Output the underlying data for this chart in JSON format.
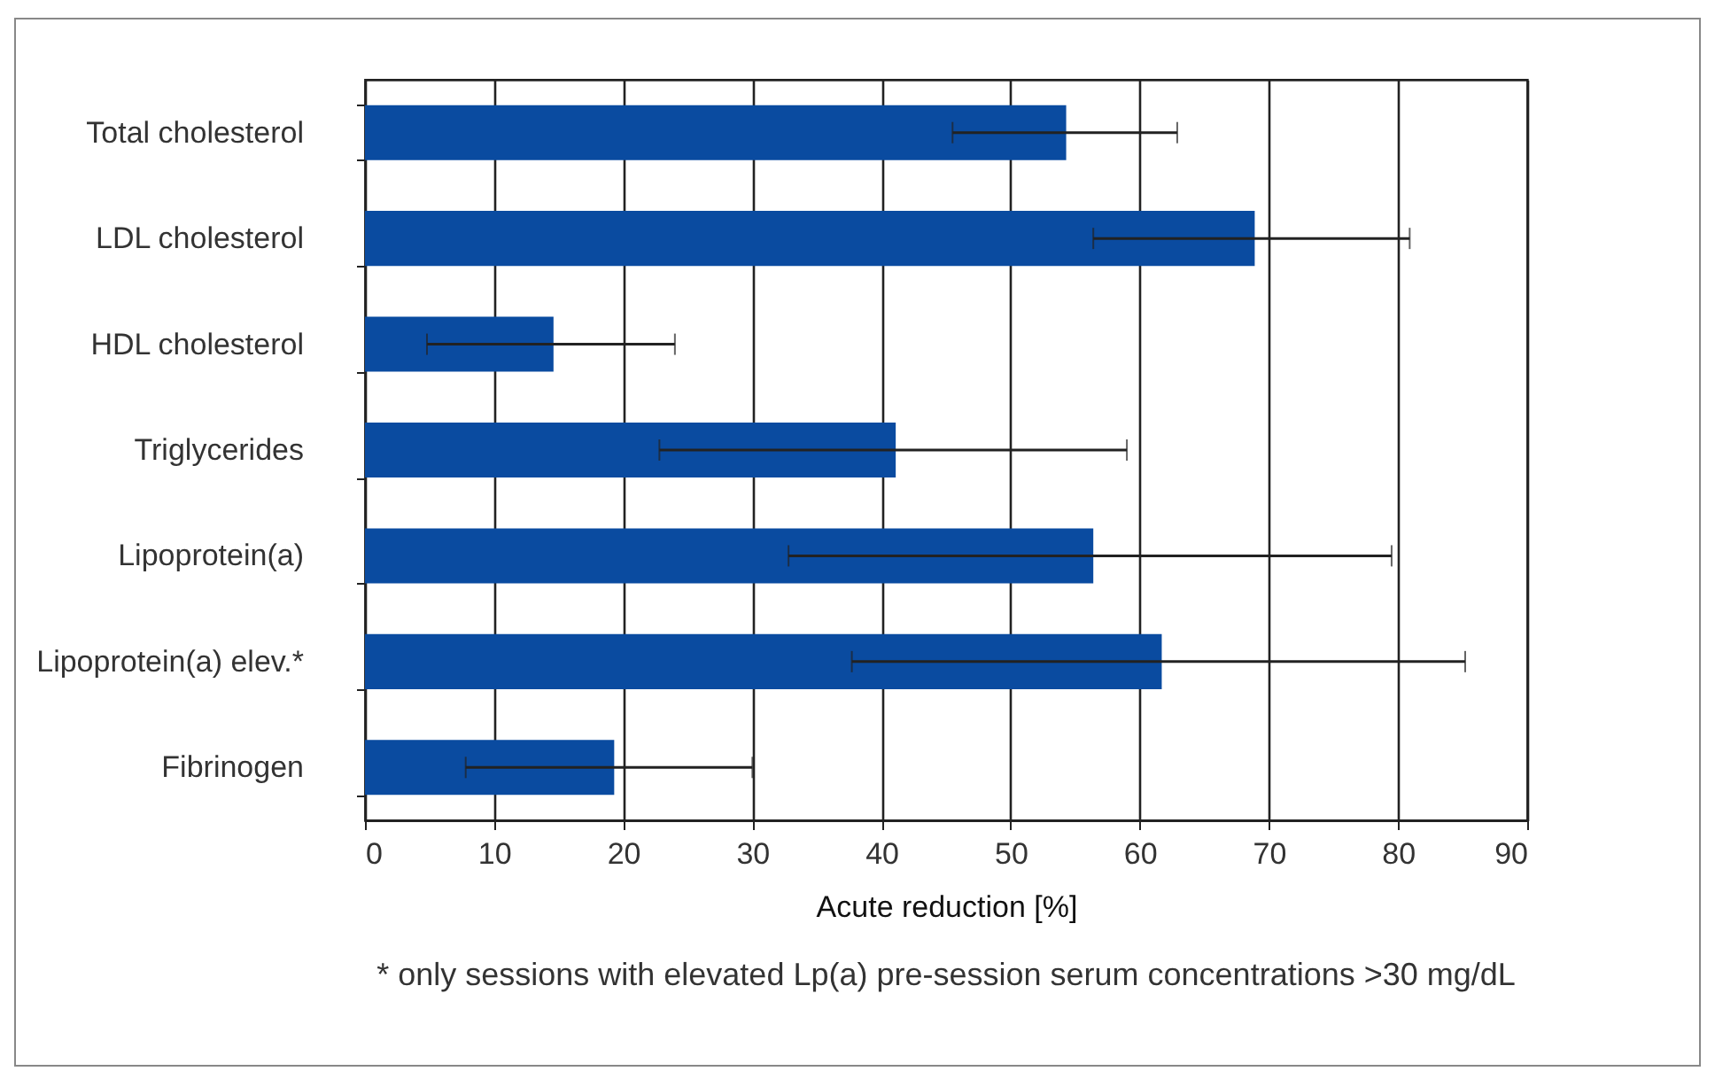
{
  "chart_data": {
    "type": "bar",
    "orientation": "horizontal",
    "xlabel": "Acute reduction [%]",
    "categories": [
      "Total  cholesterol",
      "LDL cholesterol",
      "HDL cholesterol",
      "Triglycerides",
      "Lipoprotein(a)",
      "Lipoprotein(a) elev.*",
      "Fibrinogen"
    ],
    "values": [
      54.3,
      68.9,
      14.6,
      41.1,
      56.4,
      61.7,
      19.3
    ],
    "errors": [
      [
        45.5,
        62.9
      ],
      [
        56.4,
        80.9
      ],
      [
        4.8,
        24.0
      ],
      [
        22.8,
        59.0
      ],
      [
        32.8,
        79.5
      ],
      [
        37.7,
        85.2
      ],
      [
        7.8,
        30.0
      ]
    ],
    "color": "#0a4ba0",
    "xlim": [
      0,
      90
    ],
    "xticks": [
      0,
      10,
      20,
      30,
      40,
      50,
      60,
      70,
      80,
      90
    ],
    "grid": "x",
    "annotations": [
      "* only sessions with elevated Lp(a) pre-session serum concentrations >30 mg/dL"
    ]
  }
}
